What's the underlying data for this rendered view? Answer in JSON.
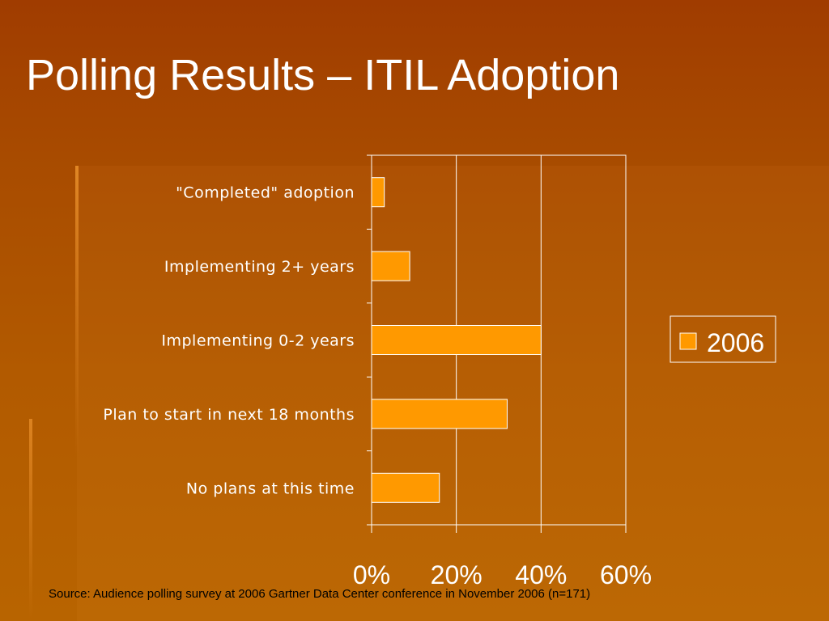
{
  "slide": {
    "title": "Polling Results – ITIL Adoption",
    "source": "Source: Audience polling survey at 2006 Gartner Data Center conference in November 2006 (n=171)"
  },
  "chart_data": {
    "type": "bar",
    "orientation": "horizontal",
    "categories": [
      "\"Completed\" adoption",
      "Implementing 2+ years",
      "Implementing 0-2 years",
      "Plan to start in next 18 months",
      "No plans at this time"
    ],
    "series": [
      {
        "name": "2006",
        "values": [
          3,
          9,
          40,
          32,
          16
        ]
      }
    ],
    "xlim": [
      0,
      60
    ],
    "x_ticks": [
      0,
      20,
      40,
      60
    ],
    "x_tick_labels": [
      "0%",
      "20%",
      "40%",
      "60%"
    ],
    "grid": true,
    "legend": "right",
    "colors": {
      "bar": "#ff9900",
      "bar_stroke": "#ffffff",
      "axis": "#ffffff",
      "label": "#ffffff"
    }
  }
}
